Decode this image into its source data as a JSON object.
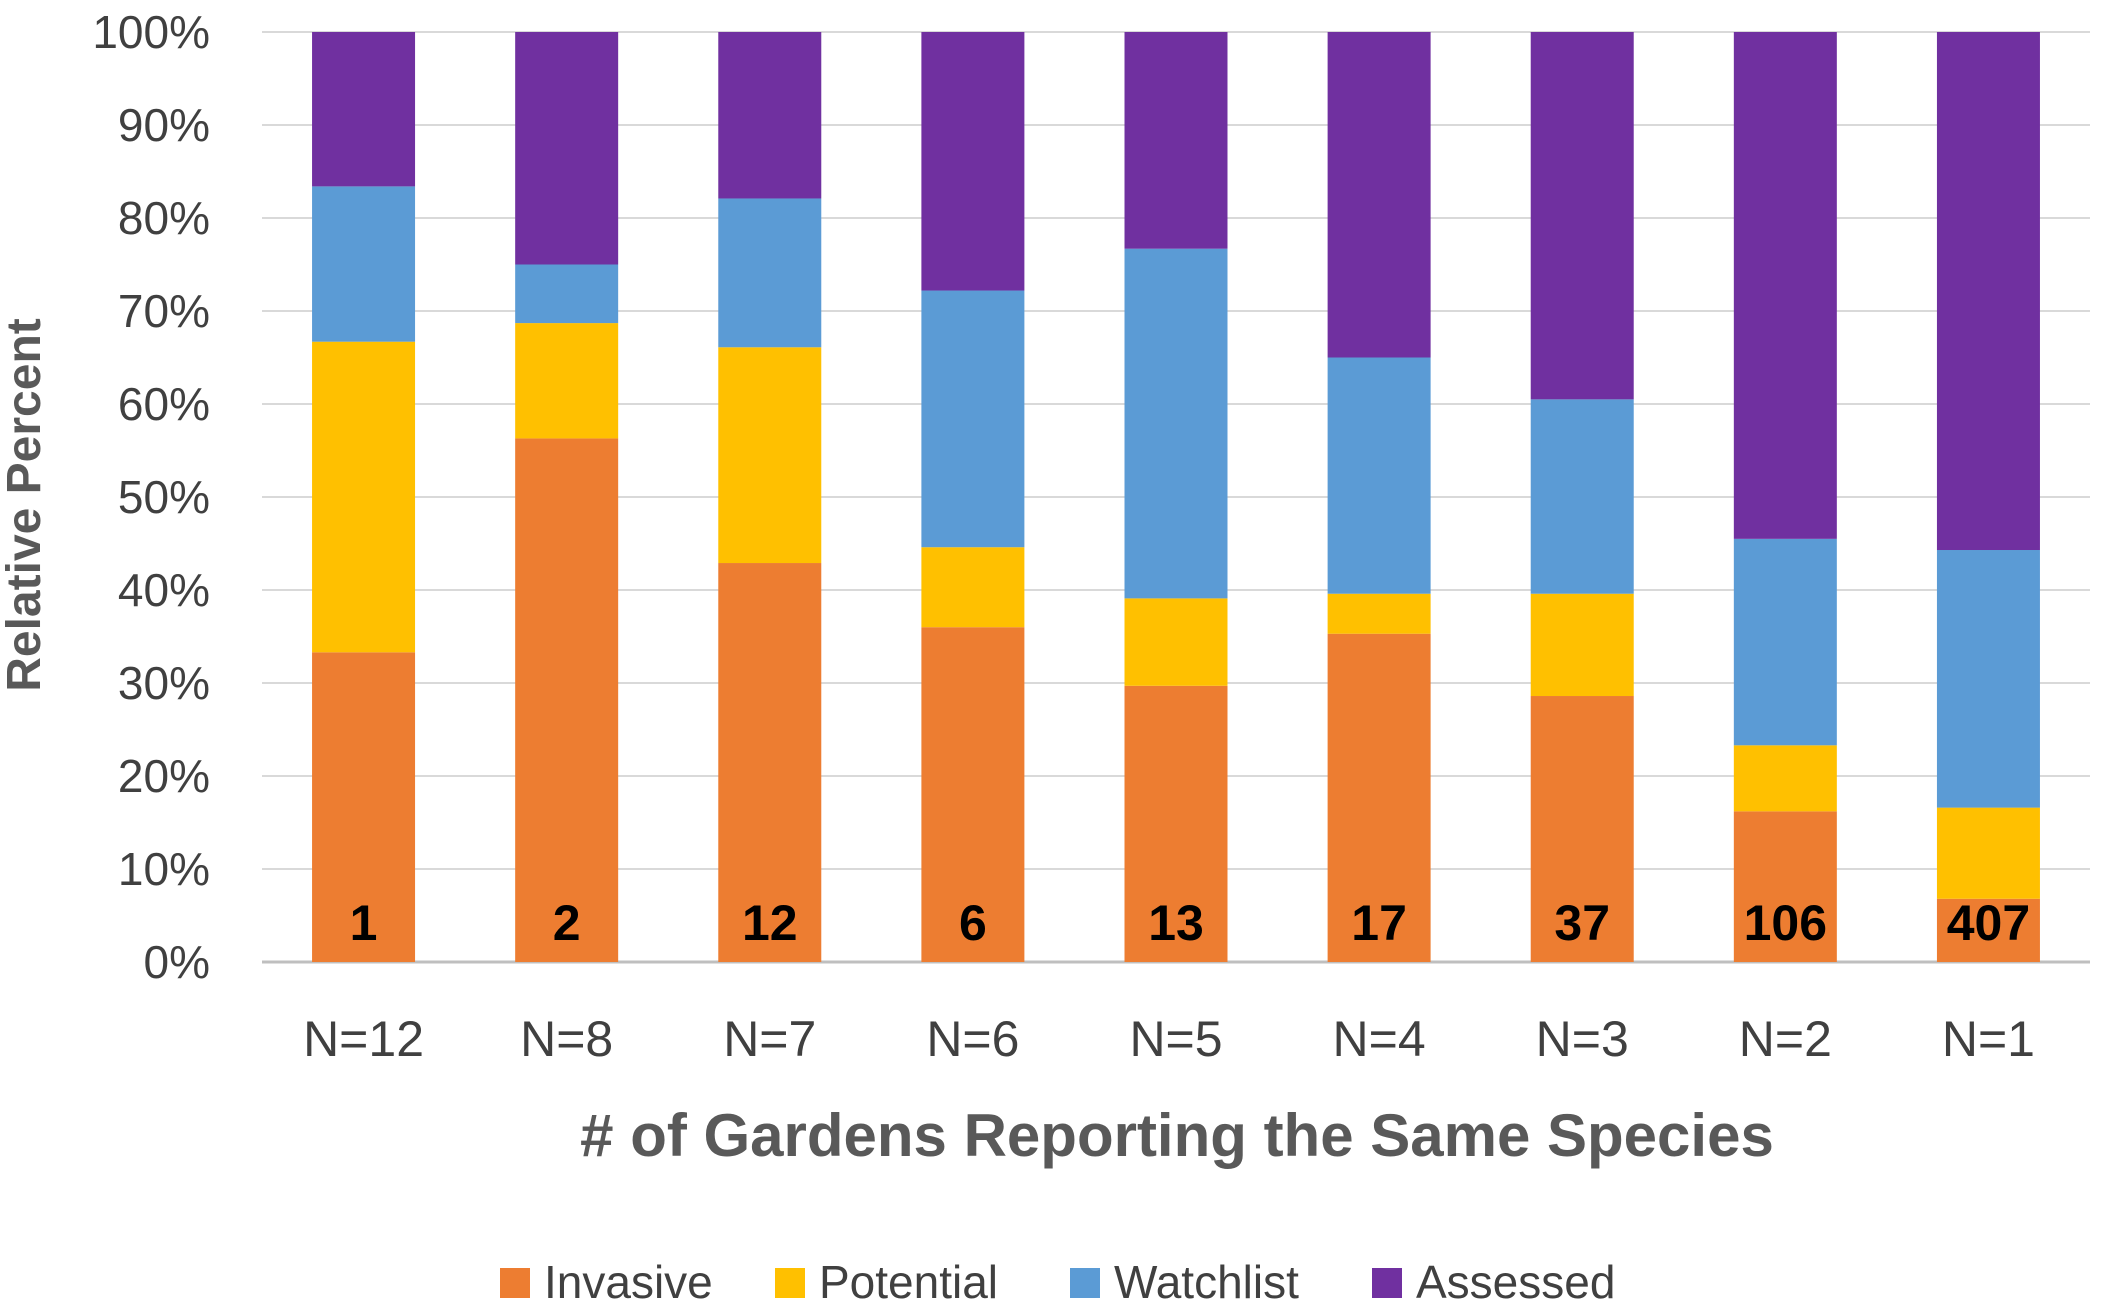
{
  "chart_data": {
    "type": "bar",
    "stacked": true,
    "title": "",
    "xlabel": "# of Gardens Reporting the Same Species",
    "ylabel": "Relative Percent",
    "ylim": [
      0,
      100
    ],
    "yticks": [
      "0%",
      "10%",
      "20%",
      "30%",
      "40%",
      "50%",
      "60%",
      "70%",
      "80%",
      "90%",
      "100%"
    ],
    "categories": [
      "N=12",
      "N=8",
      "N=7",
      "N=6",
      "N=5",
      "N=4",
      "N=3",
      "N=2",
      "N=1"
    ],
    "bar_labels": [
      "1",
      "2",
      "12",
      "6",
      "13",
      "17",
      "37",
      "106",
      "407"
    ],
    "series": [
      {
        "name": "Invasive",
        "color": "#ED7D31",
        "values": [
          33.3,
          56.3,
          42.9,
          36.0,
          29.7,
          35.3,
          28.6,
          16.2,
          6.8
        ]
      },
      {
        "name": "Potential",
        "color": "#FFC000",
        "values": [
          33.4,
          12.4,
          23.2,
          8.6,
          9.4,
          4.3,
          11.0,
          7.1,
          9.8
        ]
      },
      {
        "name": "Watchlist",
        "color": "#5B9BD5",
        "values": [
          16.7,
          6.3,
          16.0,
          27.6,
          37.6,
          25.4,
          20.9,
          22.2,
          27.7
        ]
      },
      {
        "name": "Assessed",
        "color": "#7030A0",
        "values": [
          16.6,
          25.0,
          17.9,
          27.8,
          23.3,
          35.0,
          39.5,
          54.5,
          55.7
        ]
      }
    ],
    "grid": true,
    "legend_position": "bottom"
  }
}
